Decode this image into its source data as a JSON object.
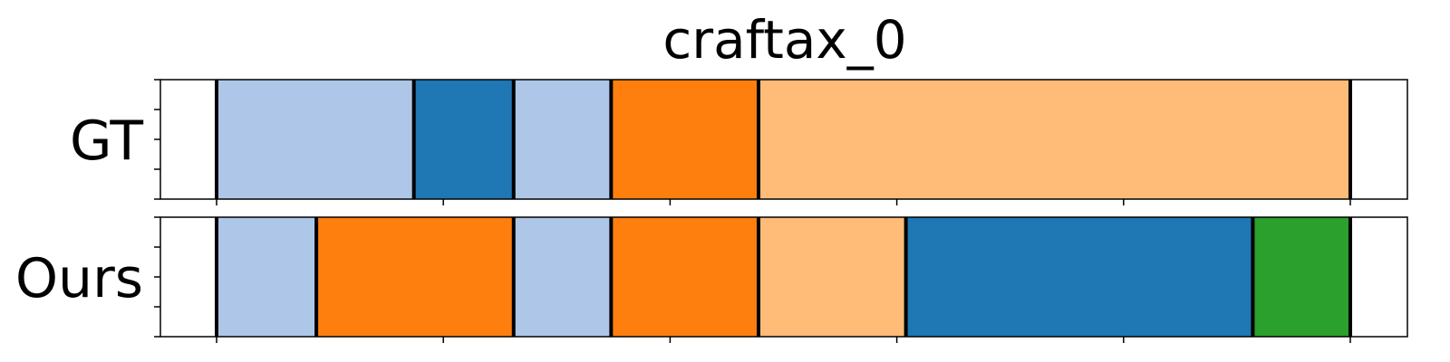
{
  "chart_data": {
    "type": "segmentation-timeline",
    "title": "craftax_0",
    "xlim": [
      0,
      0.5
    ],
    "x_ticks": [
      0,
      0.1,
      0.2,
      0.3,
      0.4,
      0.5
    ],
    "y_ticks": [
      0,
      0.25,
      0.5,
      0.75,
      1
    ],
    "grid": false,
    "rows": [
      {
        "label": "GT",
        "segments": [
          {
            "start": 0.0,
            "end": 0.087,
            "color": "#aec7e8"
          },
          {
            "start": 0.087,
            "end": 0.131,
            "color": "#1f77b4"
          },
          {
            "start": 0.131,
            "end": 0.174,
            "color": "#aec7e8"
          },
          {
            "start": 0.174,
            "end": 0.239,
            "color": "#ff7f0e"
          },
          {
            "start": 0.239,
            "end": 0.5,
            "color": "#ffbb78"
          }
        ]
      },
      {
        "label": "Ours",
        "segments": [
          {
            "start": 0.0,
            "end": 0.044,
            "color": "#aec7e8"
          },
          {
            "start": 0.044,
            "end": 0.131,
            "color": "#ff7f0e"
          },
          {
            "start": 0.131,
            "end": 0.174,
            "color": "#aec7e8"
          },
          {
            "start": 0.174,
            "end": 0.239,
            "color": "#ff7f0e"
          },
          {
            "start": 0.239,
            "end": 0.304,
            "color": "#ffbb78"
          },
          {
            "start": 0.304,
            "end": 0.457,
            "color": "#1f77b4"
          },
          {
            "start": 0.457,
            "end": 0.5,
            "color": "#2ca02c"
          }
        ]
      }
    ]
  }
}
